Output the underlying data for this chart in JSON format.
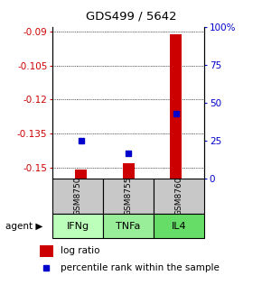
{
  "title": "GDS499 / 5642",
  "samples": [
    "GSM8750",
    "GSM8755",
    "GSM8760"
  ],
  "agents": [
    "IFNg",
    "TNFa",
    "IL4"
  ],
  "log_ratios": [
    -0.151,
    -0.148,
    -0.091
  ],
  "percentile_ranks": [
    25,
    17,
    43
  ],
  "ylim_left": [
    -0.155,
    -0.088
  ],
  "yticks_left": [
    -0.15,
    -0.135,
    -0.12,
    -0.105,
    -0.09
  ],
  "yticks_right": [
    0,
    25,
    50,
    75,
    100
  ],
  "bar_color": "#cc0000",
  "dot_color": "#0000cc",
  "sample_box_color": "#c8c8c8",
  "agent_green_light": "#bbffbb",
  "agent_green_mid": "#99ee99",
  "agent_green_dark": "#66dd66",
  "left_tick_color": "#cc0000",
  "right_tick_color": "#0000cc",
  "bar_width": 0.25
}
